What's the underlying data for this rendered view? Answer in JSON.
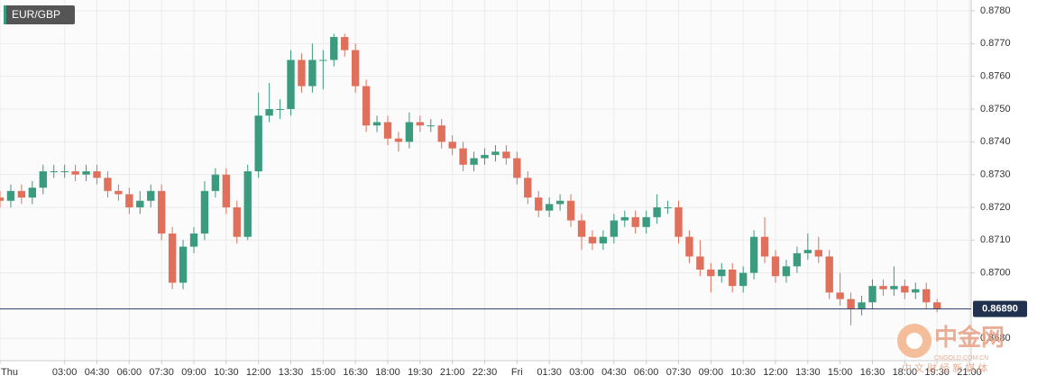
{
  "chart_data": {
    "type": "candlestick",
    "title": "EUR/GBP",
    "current_price": {
      "value": 0.8689,
      "label": "0.86890"
    },
    "watermark": {
      "name": "中金网",
      "site": "CNGOLD.COM.CN",
      "slogan": "中 文 财 经 新 媒 体"
    },
    "up_color": "#3b9b7f",
    "down_color": "#e0705b",
    "grid": true,
    "xlim": [
      0,
      45
    ],
    "ylim": [
      0.86732,
      0.87833
    ],
    "xticks": [
      {
        "value": 0,
        "label": "Thu"
      },
      {
        "value": 3,
        "label": "03:00"
      },
      {
        "value": 4.5,
        "label": "04:30"
      },
      {
        "value": 6,
        "label": "06:00"
      },
      {
        "value": 7.5,
        "label": "07:30"
      },
      {
        "value": 9,
        "label": "09:00"
      },
      {
        "value": 10.5,
        "label": "10:30"
      },
      {
        "value": 12,
        "label": "12:00"
      },
      {
        "value": 13.5,
        "label": "13:30"
      },
      {
        "value": 15,
        "label": "15:00"
      },
      {
        "value": 16.5,
        "label": "16:30"
      },
      {
        "value": 18,
        "label": "18:00"
      },
      {
        "value": 19.5,
        "label": "19:30"
      },
      {
        "value": 21,
        "label": "21:00"
      },
      {
        "value": 22.5,
        "label": "22:30"
      },
      {
        "value": 24,
        "label": "Fri"
      },
      {
        "value": 25.5,
        "label": "01:30"
      },
      {
        "value": 27,
        "label": "03:00"
      },
      {
        "value": 28.5,
        "label": "04:30"
      },
      {
        "value": 30,
        "label": "06:00"
      },
      {
        "value": 31.5,
        "label": "07:30"
      },
      {
        "value": 33,
        "label": "09:00"
      },
      {
        "value": 34.5,
        "label": "10:30"
      },
      {
        "value": 36,
        "label": "12:00"
      },
      {
        "value": 37.5,
        "label": "13:30"
      },
      {
        "value": 39,
        "label": "15:00"
      },
      {
        "value": 40.5,
        "label": "16:30"
      },
      {
        "value": 42,
        "label": "18:00"
      },
      {
        "value": 43.5,
        "label": "19:30"
      },
      {
        "value": 45,
        "label": "21:00"
      }
    ],
    "yticks": [
      {
        "value": 0.868,
        "label": "0.8680"
      },
      {
        "value": 0.87,
        "label": "0.8700"
      },
      {
        "value": 0.871,
        "label": "0.8710"
      },
      {
        "value": 0.872,
        "label": "0.8720"
      },
      {
        "value": 0.873,
        "label": "0.8730"
      },
      {
        "value": 0.874,
        "label": "0.8740"
      },
      {
        "value": 0.875,
        "label": "0.8750"
      },
      {
        "value": 0.876,
        "label": "0.8760"
      },
      {
        "value": 0.877,
        "label": "0.8770"
      },
      {
        "value": 0.878,
        "label": "0.8780"
      }
    ],
    "x": [
      0,
      0.5,
      1,
      1.5,
      2,
      2.5,
      3,
      3.5,
      4,
      4.5,
      5,
      5.5,
      6,
      6.5,
      7,
      7.5,
      8,
      8.5,
      9,
      9.5,
      10,
      10.5,
      11,
      11.5,
      12,
      12.5,
      13,
      13.5,
      14,
      14.5,
      15,
      15.5,
      16,
      16.5,
      17,
      17.5,
      18,
      18.5,
      19,
      19.5,
      20,
      20.5,
      21,
      21.5,
      22,
      22.5,
      23,
      23.5,
      24,
      24.5,
      25,
      25.5,
      26,
      26.5,
      27,
      27.5,
      28,
      28.5,
      29,
      29.5,
      30,
      30.5,
      31,
      31.5,
      32,
      32.5,
      33,
      33.5,
      34,
      34.5,
      35,
      35.5,
      36,
      36.5,
      37,
      37.5,
      38,
      38.5,
      39,
      39.5,
      40,
      40.5,
      41,
      41.5,
      42,
      42.5,
      43,
      43.5
    ],
    "open": [
      0.8723,
      0.8722,
      0.8725,
      0.8723,
      0.8726,
      0.8731,
      0.8731,
      0.8731,
      0.873,
      0.8731,
      0.8729,
      0.8725,
      0.8724,
      0.872,
      0.8722,
      0.8725,
      0.8712,
      0.8697,
      0.8708,
      0.8712,
      0.8725,
      0.873,
      0.872,
      0.8711,
      0.8731,
      0.8748,
      0.875,
      0.875,
      0.8765,
      0.8757,
      0.8765,
      0.8765,
      0.8772,
      0.8768,
      0.8757,
      0.8745,
      0.8746,
      0.8741,
      0.874,
      0.8746,
      0.8745,
      0.8745,
      0.874,
      0.8738,
      0.8733,
      0.8735,
      0.8736,
      0.8737,
      0.8735,
      0.8729,
      0.8723,
      0.8719,
      0.8721,
      0.8722,
      0.8716,
      0.8711,
      0.8709,
      0.8711,
      0.8716,
      0.8717,
      0.8714,
      0.8717,
      0.872,
      0.872,
      0.8711,
      0.8705,
      0.8701,
      0.8699,
      0.8701,
      0.8696,
      0.87,
      0.8711,
      0.8705,
      0.8699,
      0.8702,
      0.8706,
      0.8707,
      0.8705,
      0.8694,
      0.8692,
      0.8689,
      0.8691,
      0.8696,
      0.8695,
      0.8696,
      0.8694,
      0.8695,
      0.8691
    ],
    "high": [
      0.8725,
      0.8727,
      0.8727,
      0.8728,
      0.8733,
      0.8733,
      0.8733,
      0.8733,
      0.8733,
      0.8733,
      0.8731,
      0.8727,
      0.8726,
      0.8725,
      0.8727,
      0.8727,
      0.8714,
      0.871,
      0.8714,
      0.8728,
      0.8732,
      0.8732,
      0.8722,
      0.8733,
      0.8755,
      0.8758,
      0.8753,
      0.8768,
      0.8767,
      0.877,
      0.8768,
      0.8773,
      0.8773,
      0.877,
      0.8759,
      0.8748,
      0.8748,
      0.8743,
      0.8749,
      0.8748,
      0.8747,
      0.8747,
      0.8742,
      0.874,
      0.8737,
      0.8738,
      0.8739,
      0.8739,
      0.8737,
      0.8731,
      0.8725,
      0.8723,
      0.8724,
      0.8724,
      0.8718,
      0.8713,
      0.8713,
      0.8718,
      0.8719,
      0.8719,
      0.8719,
      0.8724,
      0.8722,
      0.8722,
      0.8713,
      0.871,
      0.8703,
      0.8703,
      0.8703,
      0.8702,
      0.8713,
      0.8717,
      0.8707,
      0.8704,
      0.8708,
      0.8712,
      0.8711,
      0.8707,
      0.87,
      0.8694,
      0.8693,
      0.8698,
      0.8698,
      0.8702,
      0.8698,
      0.8697,
      0.8697,
      0.8692
    ],
    "low": [
      0.872,
      0.872,
      0.8721,
      0.8721,
      0.8724,
      0.8729,
      0.8729,
      0.8728,
      0.8728,
      0.8727,
      0.8723,
      0.8722,
      0.8718,
      0.8718,
      0.872,
      0.871,
      0.8695,
      0.8695,
      0.8706,
      0.871,
      0.8723,
      0.8718,
      0.8709,
      0.871,
      0.8729,
      0.8746,
      0.8747,
      0.8748,
      0.8755,
      0.8755,
      0.8756,
      0.8763,
      0.8766,
      0.8755,
      0.8743,
      0.8743,
      0.8739,
      0.8737,
      0.8738,
      0.8743,
      0.8743,
      0.8738,
      0.8736,
      0.8731,
      0.8731,
      0.8733,
      0.8734,
      0.8733,
      0.8727,
      0.8721,
      0.8717,
      0.8717,
      0.8719,
      0.8714,
      0.8707,
      0.8707,
      0.8707,
      0.8709,
      0.8714,
      0.8712,
      0.8712,
      0.8715,
      0.8718,
      0.8709,
      0.8703,
      0.8699,
      0.8694,
      0.8697,
      0.8694,
      0.8694,
      0.8698,
      0.8703,
      0.8697,
      0.8697,
      0.87,
      0.8704,
      0.8703,
      0.8692,
      0.869,
      0.8684,
      0.8687,
      0.8689,
      0.8693,
      0.8693,
      0.8692,
      0.8692,
      0.8689,
      0.8688
    ],
    "close": [
      0.8722,
      0.8725,
      0.8723,
      0.8726,
      0.8731,
      0.8731,
      0.8731,
      0.873,
      0.8731,
      0.8729,
      0.8725,
      0.8724,
      0.872,
      0.8722,
      0.8725,
      0.8712,
      0.8697,
      0.8708,
      0.8712,
      0.8725,
      0.873,
      0.872,
      0.8711,
      0.8731,
      0.8748,
      0.875,
      0.875,
      0.8765,
      0.8757,
      0.8765,
      0.8765,
      0.8772,
      0.8768,
      0.8757,
      0.8745,
      0.8746,
      0.8741,
      0.874,
      0.8746,
      0.8745,
      0.8745,
      0.874,
      0.8738,
      0.8733,
      0.8735,
      0.8736,
      0.8737,
      0.8735,
      0.8729,
      0.8723,
      0.8719,
      0.8721,
      0.8722,
      0.8716,
      0.8711,
      0.8709,
      0.8711,
      0.8716,
      0.8717,
      0.8714,
      0.8717,
      0.872,
      0.872,
      0.8711,
      0.8705,
      0.8701,
      0.8699,
      0.8701,
      0.8696,
      0.87,
      0.8711,
      0.8705,
      0.8699,
      0.8702,
      0.8706,
      0.8707,
      0.8705,
      0.8694,
      0.8692,
      0.8689,
      0.8691,
      0.8696,
      0.8695,
      0.8696,
      0.8694,
      0.8695,
      0.8691,
      0.8689
    ]
  }
}
